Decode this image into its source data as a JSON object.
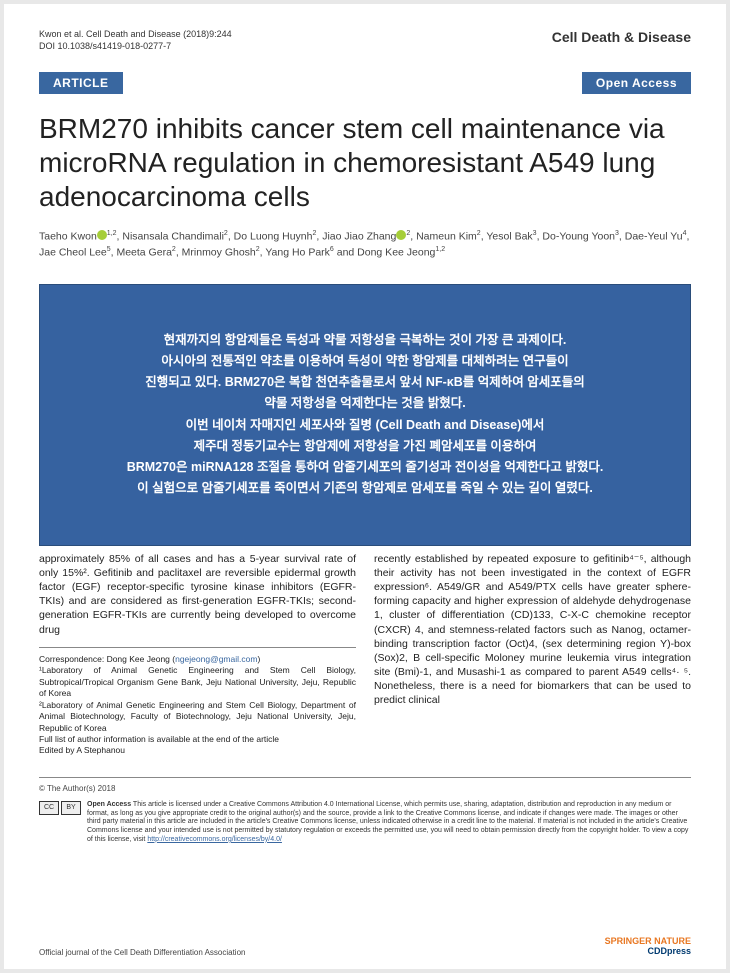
{
  "header": {
    "citation": "Kwon et al. Cell Death and Disease (2018)9:244",
    "doi": "DOI 10.1038/s41419-018-0277-7",
    "journal": "Cell Death & Disease"
  },
  "badges": {
    "article": "ARTICLE",
    "open_access": "Open Access"
  },
  "title": "BRM270 inhibits cancer stem cell maintenance via microRNA regulation in chemoresistant A549 lung adenocarcinoma cells",
  "authors_html": "Taeho Kwon<span class='orcid'></span><span class='sup'>1,2</span>, Nisansala Chandimali<span class='sup'>2</span>, Do Luong Huynh<span class='sup'>2</span>, Jiao Jiao Zhang<span class='orcid'></span><span class='sup'>2</span>, Nameun Kim<span class='sup'>2</span>, Yesol Bak<span class='sup'>3</span>, Do-Young Yoon<span class='sup'>3</span>, Dae-Yeul Yu<span class='sup'>4</span>, Jae Cheol Lee<span class='sup'>5</span>, Meeta Gera<span class='sup'>2</span>, Mrinmoy Ghosh<span class='sup'>2</span>, Yang Ho Park<span class='sup'>6</span> and Dong Kee Jeong<span class='sup'>1,2</span>",
  "overlay": {
    "l1": "현재까지의 항암제들은 독성과 약물 저항성을 극복하는 것이 가장 큰 과제이다.",
    "l2": "아시아의 전통적인 약초를 이용하여 독성이 약한 항암제를 대체하려는 연구들이",
    "l3": "진행되고 있다. BRM270은 복합 천연추출물로서 앞서 NF-κB를 억제하여 암세포들의",
    "l4": "약물 저항성을 억제한다는 것을 밝혔다.",
    "l5": "이번 네이처 자매지인 세포사와 질병 (Cell Death and Disease)에서",
    "l6": "제주대 정동기교수는 항암제에 저항성을 가진 폐암세포를 이용하여",
    "l7": "BRM270은 miRNA128 조절을 통하여 암줄기세포의 줄기성과 전이성을 억제한다고 밝혔다.",
    "l8": "이 실험으로 암줄기세포를 죽이면서 기존의 항암제로 암세포를 죽일 수 있는 길이 열렸다."
  },
  "body": {
    "left": "approximately 85% of all cases and has a 5-year survival rate of only 15%². Gefitinib and paclitaxel are reversible epidermal growth factor (EGF) receptor-specific tyrosine kinase inhibitors (EGFR-TKIs) and are considered as first-generation EGFR-TKIs; second-generation EGFR-TKIs are currently being developed to overcome drug",
    "right": "recently established by repeated exposure to gefitinib⁴⁻⁵, although their activity has not been investigated in the context of EGFR expression⁶. A549/GR and A549/PTX cells have greater sphere-forming capacity and higher expression of aldehyde dehydrogenase 1, cluster of differentiation (CD)133, C-X-C chemokine receptor (CXCR) 4, and stemness-related factors such as Nanog, octamer-binding transcription factor (Oct)4, (sex determining region Y)-box (Sox)2, B cell-specific Moloney murine leukemia virus integration site (Bmi)-1, and Musashi-1 as compared to parent A549 cells⁴· ⁵. Nonetheless, there is a need for biomarkers that can be used to predict clinical"
  },
  "corr": {
    "line": "Correspondence: Dong Kee Jeong (",
    "email": "ngejeong@gmail.com",
    "close": ")",
    "aff1": "¹Laboratory of Animal Genetic Engineering and Stem Cell Biology, Subtropical/Tropical Organism Gene Bank, Jeju National University, Jeju, Republic of Korea",
    "aff2": "²Laboratory of Animal Genetic Engineering and Stem Cell Biology, Department of Animal Biotechnology, Faculty of Biotechnology, Jeju National University, Jeju, Republic of Korea",
    "note": "Full list of author information is available at the end of the article",
    "edited": "Edited by A Stephanou"
  },
  "copyright": "© The Author(s) 2018",
  "license": {
    "bold": "Open Access",
    "text": " This article is licensed under a Creative Commons Attribution 4.0 International License, which permits use, sharing, adaptation, distribution and reproduction in any medium or format, as long as you give appropriate credit to the original author(s) and the source, provide a link to the Creative Commons license, and indicate if changes were made. The images or other third party material in this article are included in the article's Creative Commons license, unless indicated otherwise in a credit line to the material. If material is not included in the article's Creative Commons license and your intended use is not permitted by statutory regulation or exceeds the permitted use, you will need to obtain permission directly from the copyright holder. To view a copy of this license, visit ",
    "link": "http://creativecommons.org/licenses/by/4.0/"
  },
  "footer": {
    "official": "Official journal of the Cell Death Differentiation Association",
    "logo1": "SPRINGER NATURE",
    "logo2": "CDDpress"
  }
}
